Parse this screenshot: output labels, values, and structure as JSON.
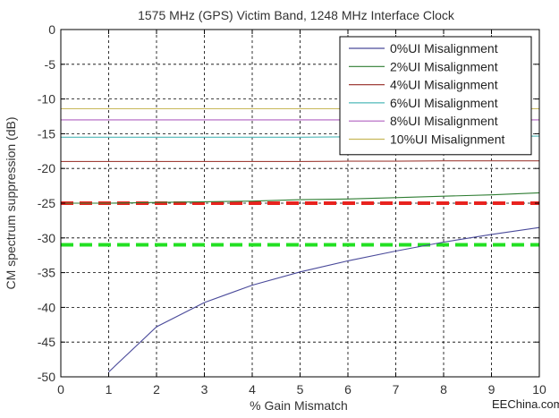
{
  "chart_data": {
    "type": "line",
    "title": "1575 MHz (GPS) Victim Band, 1248 MHz Interface Clock",
    "xlabel": "% Gain Mismatch",
    "ylabel": "CM spectrum suppression (dB)",
    "xlim": [
      0,
      10
    ],
    "ylim": [
      -50,
      0
    ],
    "x_ticks": [
      0,
      1,
      2,
      3,
      4,
      5,
      6,
      7,
      8,
      9,
      10
    ],
    "y_ticks": [
      0,
      -5,
      -10,
      -15,
      -20,
      -25,
      -30,
      -35,
      -40,
      -45,
      -50
    ],
    "grid": true,
    "legend_position": "top-right",
    "series": [
      {
        "name": "0%UI Misalignment",
        "color": "#4a4a9a",
        "x": [
          1,
          2,
          3,
          4,
          5,
          6,
          7,
          8,
          9,
          10
        ],
        "y": [
          -49.3,
          -42.8,
          -39.3,
          -36.8,
          -34.9,
          -33.3,
          -31.9,
          -30.6,
          -29.5,
          -28.5
        ]
      },
      {
        "name": "2%UI Misalignment",
        "color": "#2e7d32",
        "x": [
          0,
          1,
          2,
          3,
          4,
          5,
          6,
          7,
          8,
          9,
          10
        ],
        "y": [
          -25.0,
          -25.0,
          -24.9,
          -24.8,
          -24.7,
          -24.5,
          -24.4,
          -24.2,
          -24.0,
          -23.8,
          -23.5
        ]
      },
      {
        "name": "4%UI Misalignment",
        "color": "#a0403a",
        "x": [
          0,
          1,
          2,
          3,
          4,
          5,
          6,
          7,
          8,
          9,
          10
        ],
        "y": [
          -19.0,
          -19.0,
          -19.0,
          -19.0,
          -19.0,
          -19.0,
          -18.95,
          -18.95,
          -18.9,
          -18.9,
          -18.9
        ]
      },
      {
        "name": "6%UI Misalignment",
        "color": "#4fb8b8",
        "x": [
          0,
          1,
          2,
          3,
          4,
          5,
          6,
          7,
          8,
          9,
          10
        ],
        "y": [
          -15.5,
          -15.5,
          -15.5,
          -15.5,
          -15.5,
          -15.5,
          -15.45,
          -15.45,
          -15.4,
          -15.4,
          -15.35
        ]
      },
      {
        "name": "8%UI Misalignment",
        "color": "#b060c0",
        "x": [
          0,
          1,
          2,
          3,
          4,
          5,
          6,
          7,
          8,
          9,
          10
        ],
        "y": [
          -13.0,
          -13.0,
          -13.0,
          -13.0,
          -13.0,
          -13.0,
          -13.0,
          -13.0,
          -13.0,
          -13.0,
          -13.0
        ]
      },
      {
        "name": "10%UI Misalignment",
        "color": "#c8b85a",
        "x": [
          0,
          1,
          2,
          3,
          4,
          5,
          6,
          7,
          8,
          9,
          10
        ],
        "y": [
          -11.4,
          -11.4,
          -11.4,
          -11.4,
          -11.4,
          -11.4,
          -11.4,
          -11.4,
          -11.4,
          -11.4,
          -11.4
        ]
      }
    ],
    "reference_lines": [
      {
        "y": -25,
        "color": "#e8231f",
        "style": "dashed"
      },
      {
        "y": -31,
        "color": "#22e022",
        "style": "dashed"
      }
    ]
  },
  "watermark": "EEChina.com"
}
